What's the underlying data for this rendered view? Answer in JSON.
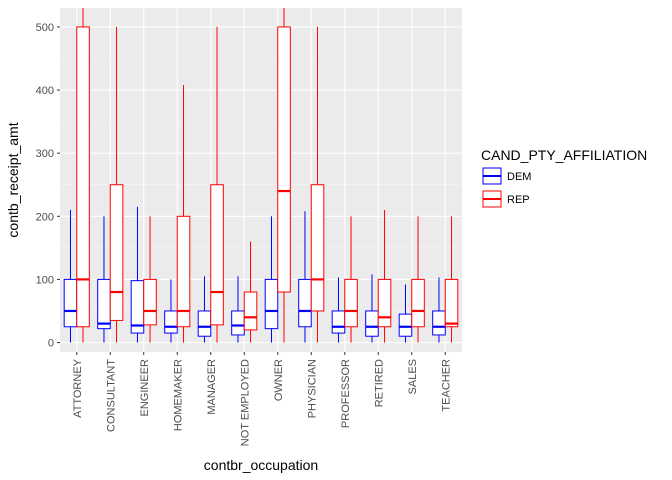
{
  "chart_data": {
    "type": "boxplot",
    "xlabel": "contbr_occupation",
    "ylabel": "contb_receipt_amt",
    "ylim": [
      -15,
      530
    ],
    "yticks": [
      0,
      100,
      200,
      300,
      400,
      500
    ],
    "grid": true,
    "legend": {
      "title": "CAND_PTY_AFFILIATION",
      "placement": "right"
    },
    "categories": [
      "ATTORNEY",
      "CONSULTANT",
      "ENGINEER",
      "HOMEMAKER",
      "MANAGER",
      "NOT EMPLOYED",
      "OWNER",
      "PHYSICIAN",
      "PROFESSOR",
      "RETIRED",
      "SALES",
      "TEACHER"
    ],
    "series": [
      {
        "name": "DEM",
        "color": "#0000ff",
        "boxes": [
          {
            "low": 0,
            "q1": 25,
            "median": 50,
            "q3": 100,
            "high": 210
          },
          {
            "low": 0,
            "q1": 22,
            "median": 30,
            "q3": 100,
            "high": 200
          },
          {
            "low": 0,
            "q1": 15,
            "median": 27,
            "q3": 98,
            "high": 215
          },
          {
            "low": 0,
            "q1": 15,
            "median": 25,
            "q3": 50,
            "high": 100
          },
          {
            "low": 0,
            "q1": 10,
            "median": 25,
            "q3": 50,
            "high": 105
          },
          {
            "low": 0,
            "q1": 12,
            "median": 27,
            "q3": 50,
            "high": 105
          },
          {
            "low": 0,
            "q1": 22,
            "median": 50,
            "q3": 100,
            "high": 200
          },
          {
            "low": 0,
            "q1": 25,
            "median": 50,
            "q3": 100,
            "high": 208
          },
          {
            "low": 0,
            "q1": 15,
            "median": 25,
            "q3": 50,
            "high": 103
          },
          {
            "low": 0,
            "q1": 10,
            "median": 25,
            "q3": 50,
            "high": 108
          },
          {
            "low": 0,
            "q1": 10,
            "median": 25,
            "q3": 45,
            "high": 92
          },
          {
            "low": 0,
            "q1": 12,
            "median": 25,
            "q3": 50,
            "high": 103
          }
        ]
      },
      {
        "name": "REP",
        "color": "#ff0000",
        "boxes": [
          {
            "low": 0,
            "q1": 25,
            "median": 100,
            "q3": 500,
            "high": 530
          },
          {
            "low": 0,
            "q1": 35,
            "median": 80,
            "q3": 250,
            "high": 500
          },
          {
            "low": 0,
            "q1": 28,
            "median": 50,
            "q3": 100,
            "high": 200
          },
          {
            "low": 0,
            "q1": 25,
            "median": 50,
            "q3": 200,
            "high": 408
          },
          {
            "low": 0,
            "q1": 28,
            "median": 80,
            "q3": 250,
            "high": 500
          },
          {
            "low": 0,
            "q1": 20,
            "median": 40,
            "q3": 80,
            "high": 160
          },
          {
            "low": 0,
            "q1": 80,
            "median": 240,
            "q3": 500,
            "high": 530
          },
          {
            "low": 0,
            "q1": 50,
            "median": 100,
            "q3": 250,
            "high": 500
          },
          {
            "low": 0,
            "q1": 25,
            "median": 50,
            "q3": 100,
            "high": 200
          },
          {
            "low": 0,
            "q1": 25,
            "median": 40,
            "q3": 100,
            "high": 210
          },
          {
            "low": 0,
            "q1": 25,
            "median": 50,
            "q3": 100,
            "high": 200
          },
          {
            "low": 0,
            "q1": 25,
            "median": 30,
            "q3": 100,
            "high": 200
          }
        ]
      }
    ]
  }
}
